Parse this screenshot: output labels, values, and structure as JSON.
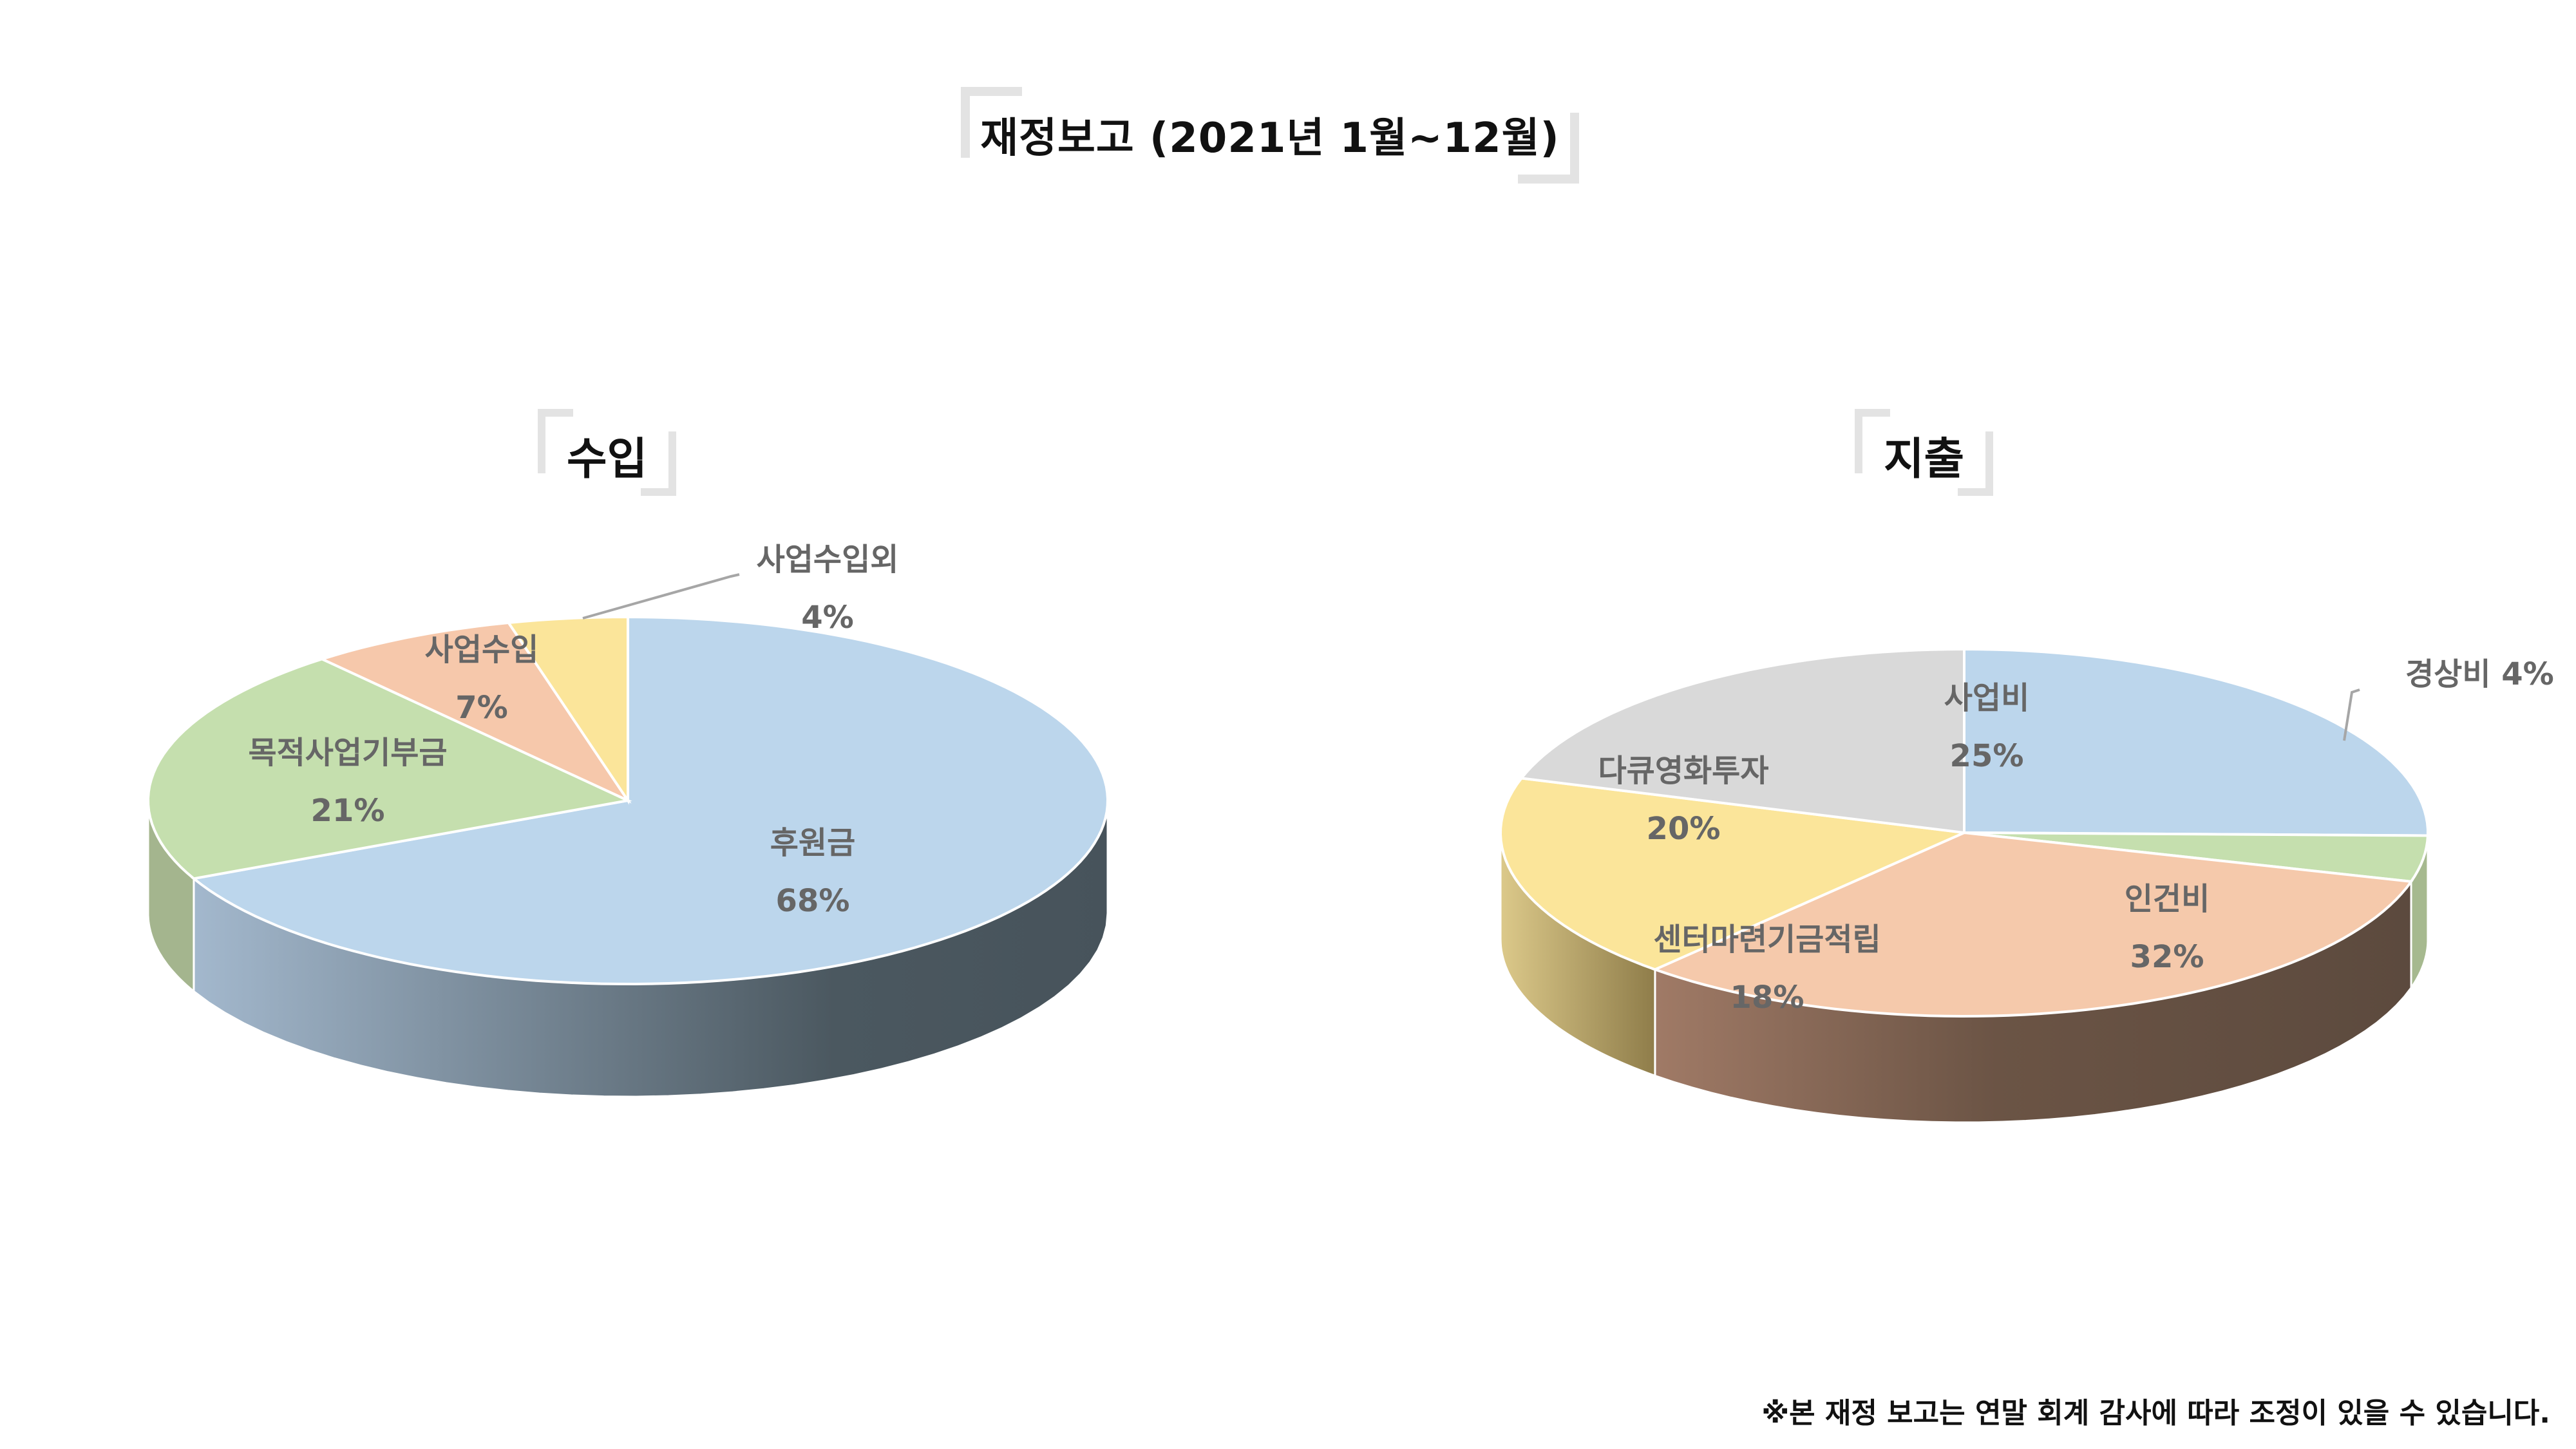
{
  "title": "재정보고 (2021년 1월~12월)",
  "footnote": "※본 재정 보고는 연말 회계 감사에 따라 조정이 있을 수 있습니다.",
  "chart_data": [
    {
      "type": "pie",
      "title": "수입",
      "slices": [
        {
          "label": "후원금",
          "value": 68,
          "pct": "68%",
          "color": "#bcd6ec",
          "side": "#8ea4b8"
        },
        {
          "label": "목적사업기부금",
          "value": 21,
          "pct": "21%",
          "color": "#c5dfae",
          "side": "#98ab84"
        },
        {
          "label": "사업수입",
          "value": 7,
          "pct": "7%",
          "color": "#f6c8ab",
          "side": "#b0907a"
        },
        {
          "label": "사업수입외",
          "value": 4,
          "pct": "4%",
          "color": "#fbe59a",
          "side": "#bba866"
        }
      ]
    },
    {
      "type": "pie",
      "title": "지출",
      "slices": [
        {
          "label": "사업비",
          "value": 25,
          "pct": "25%",
          "color": "#bcd6ec",
          "side": "#8ea4b8"
        },
        {
          "label": "경상비",
          "value": 4,
          "pct": "4%",
          "color": "#c5dfae",
          "side": "#98ab84"
        },
        {
          "label": "인건비",
          "value": 32,
          "pct": "32%",
          "color": "#f5c9ab",
          "side": "#a6846e"
        },
        {
          "label": "센터마련기금적립",
          "value": 18,
          "pct": "18%",
          "color": "#fbe59a",
          "side": "#c7b36c"
        },
        {
          "label": "다큐영화투자",
          "value": 20,
          "pct": "20%",
          "color": "#d9d9d9",
          "side": "#a8a8a8"
        }
      ]
    }
  ]
}
